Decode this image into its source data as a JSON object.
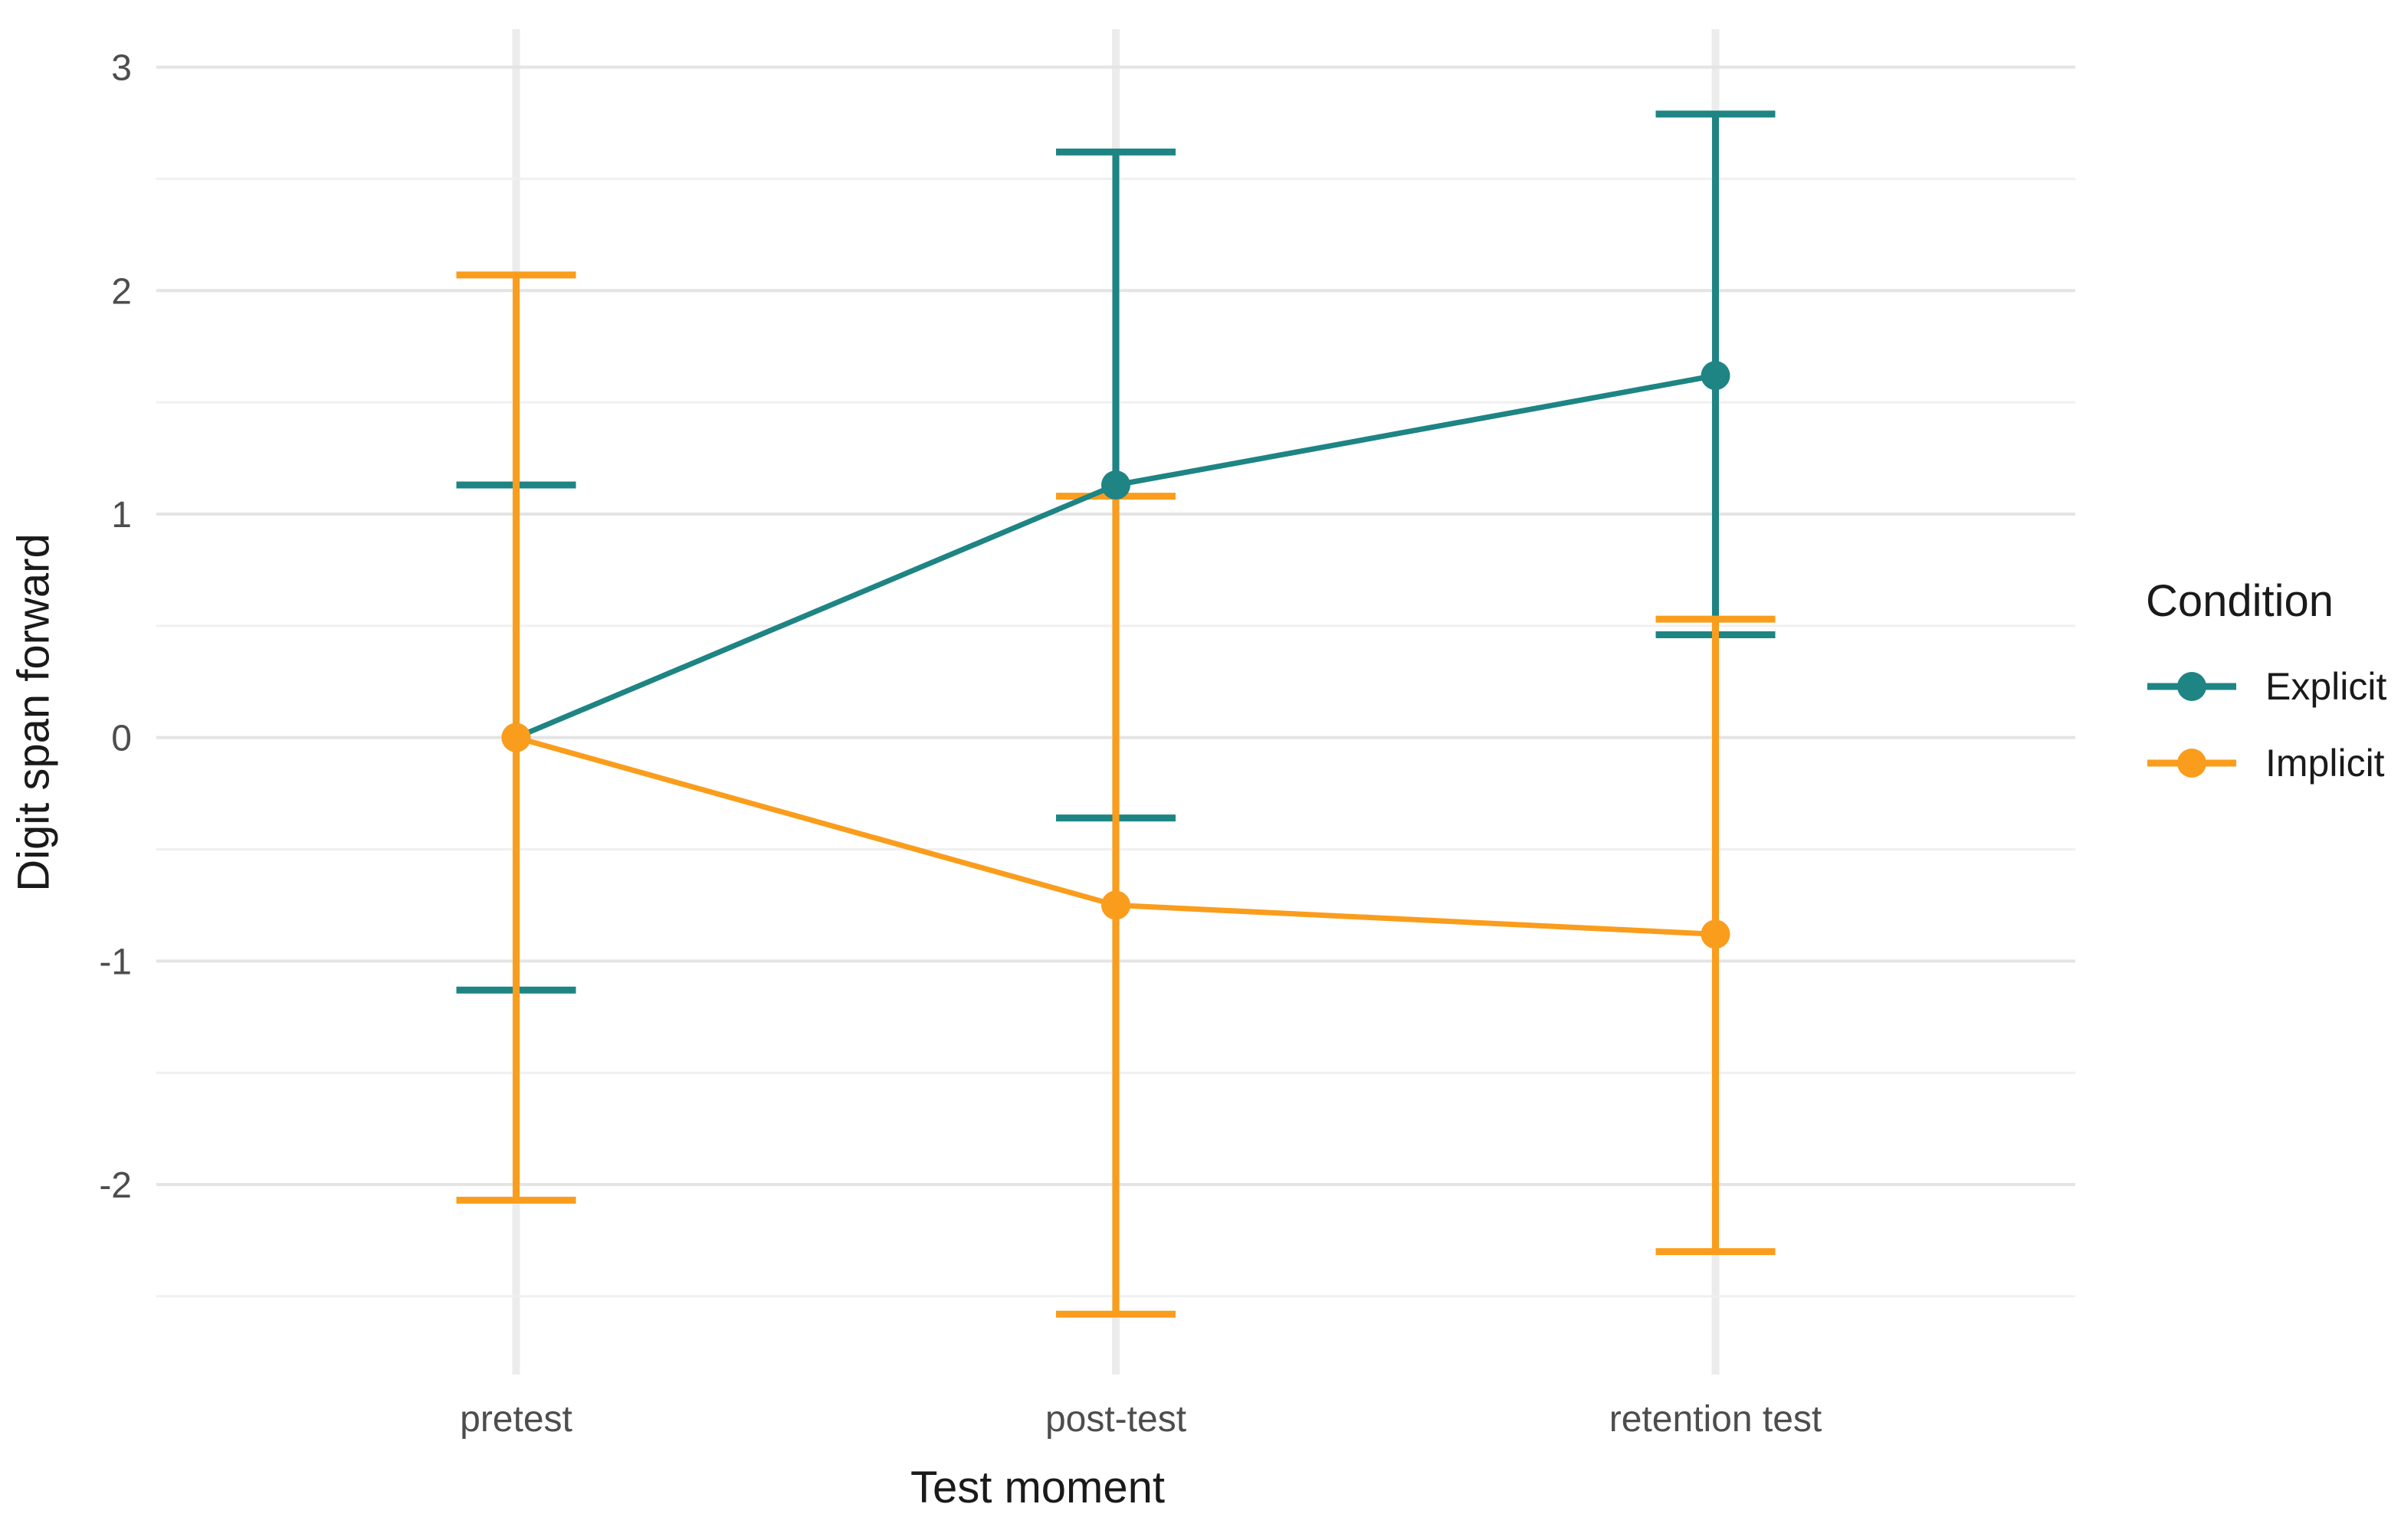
{
  "chart_data": {
    "type": "line",
    "title": "",
    "xlabel": "Test moment",
    "ylabel": "Digit span forward",
    "categories": [
      "pretest",
      "post-test",
      "retention test"
    ],
    "y_ticks": [
      3,
      2,
      1,
      0,
      -1,
      -2
    ],
    "y_minor_gridlines": [
      2.5,
      1.5,
      0.5,
      -0.5,
      -1.5,
      -2.5
    ],
    "ylim": [
      -2.85,
      3.17
    ],
    "grid": "horizontal major and minor gridlines on, vertical gridline at each category, no panel border (minimal theme)",
    "legend": {
      "title": "Condition",
      "position": "right"
    },
    "series": [
      {
        "name": "Explicit",
        "color": "#1E8484",
        "means": [
          0,
          1.13,
          1.62
        ],
        "ci_lower": [
          -1.13,
          -0.36,
          0.46
        ],
        "ci_upper": [
          1.13,
          2.62,
          2.79
        ]
      },
      {
        "name": "Implicit",
        "color": "#FA9D1C",
        "means": [
          0,
          -0.75,
          -0.88
        ],
        "ci_lower": [
          -2.07,
          -2.58,
          -2.3
        ],
        "ci_upper": [
          2.07,
          1.08,
          0.53
        ]
      }
    ],
    "marker": "filled circle on each mean, error bars with horizontal caps"
  },
  "colors": {
    "tick_label": "#4d4d4d",
    "axis_title": "#1a1a1a",
    "major_gridline": "#e4e4e4",
    "minor_gridline": "#f0f0f0",
    "vertical_gridline": "#ececec",
    "background": "#ffffff"
  }
}
